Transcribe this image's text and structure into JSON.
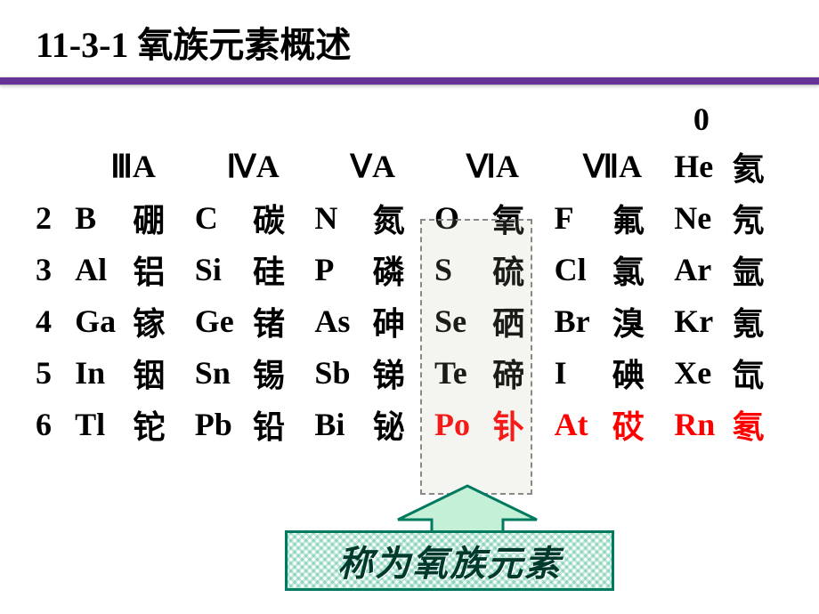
{
  "title": "11-3-1 氧族元素概述",
  "groups": [
    "ⅢA",
    "ⅣA",
    "ⅤA",
    "ⅥA",
    "ⅦA"
  ],
  "zero_label": "0",
  "zero_row": {
    "sym": "He",
    "name": "氦"
  },
  "rows": [
    {
      "period": "2",
      "cells": [
        {
          "sym": "B",
          "name": "硼"
        },
        {
          "sym": "C",
          "name": "碳"
        },
        {
          "sym": "N",
          "name": "氮"
        },
        {
          "sym": "O",
          "name": "氧"
        },
        {
          "sym": "F",
          "name": "氟"
        },
        {
          "sym": "Ne",
          "name": "氖"
        }
      ]
    },
    {
      "period": "3",
      "cells": [
        {
          "sym": "Al",
          "name": "铝"
        },
        {
          "sym": "Si",
          "name": "硅"
        },
        {
          "sym": "P",
          "name": "磷"
        },
        {
          "sym": "S",
          "name": "硫"
        },
        {
          "sym": "Cl",
          "name": "氯"
        },
        {
          "sym": "Ar",
          "name": "氩"
        }
      ]
    },
    {
      "period": "4",
      "cells": [
        {
          "sym": "Ga",
          "name": "镓"
        },
        {
          "sym": "Ge",
          "name": "锗"
        },
        {
          "sym": "As",
          "name": "砷"
        },
        {
          "sym": "Se",
          "name": "硒"
        },
        {
          "sym": "Br",
          "name": "溴"
        },
        {
          "sym": "Kr",
          "name": "氪"
        }
      ]
    },
    {
      "period": "5",
      "cells": [
        {
          "sym": "In",
          "name": "铟"
        },
        {
          "sym": "Sn",
          "name": "锡"
        },
        {
          "sym": "Sb",
          "name": "锑"
        },
        {
          "sym": "Te",
          "name": "碲"
        },
        {
          "sym": "I",
          "name": "碘"
        },
        {
          "sym": "Xe",
          "name": "氙"
        }
      ]
    },
    {
      "period": "6",
      "cells": [
        {
          "sym": "Tl",
          "name": "铊"
        },
        {
          "sym": "Pb",
          "name": "铅"
        },
        {
          "sym": "Bi",
          "name": "铋"
        },
        {
          "sym": "Po",
          "name": "钋",
          "red": true
        },
        {
          "sym": "At",
          "name": "砹",
          "red": true
        },
        {
          "sym": "Rn",
          "name": "氡",
          "red": true
        }
      ]
    }
  ],
  "callout": "称为氧族元素",
  "colors": {
    "divider": "#663399",
    "red": "#ff0000",
    "callout_border": "#007a5e",
    "callout_text": "#003a2c",
    "arrow_fill": "#c5f0d8",
    "arrow_stroke": "#007a5e"
  }
}
